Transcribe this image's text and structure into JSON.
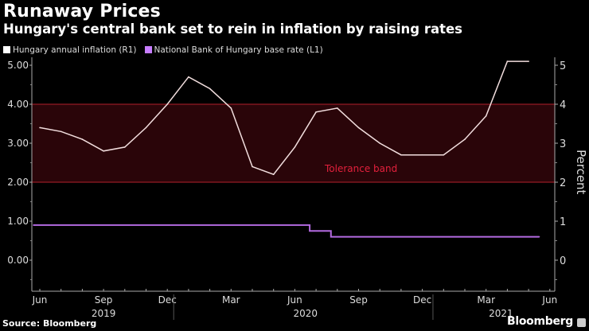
{
  "chart_data": {
    "type": "line",
    "title": "Runaway Prices",
    "subtitle": "Hungary's central bank set to rein in inflation by raising rates",
    "source": "Source: Bloomberg",
    "brand": "Bloomberg",
    "ylabel_right": "Percent",
    "ylim": [
      -0.8,
      5.2
    ],
    "left_ticks": [
      "5.00",
      "4.00",
      "3.00",
      "2.00",
      "1.00",
      "0.00"
    ],
    "left_tick_values": [
      5,
      4,
      3,
      2,
      1,
      0
    ],
    "right_ticks": [
      "5",
      "4",
      "3",
      "2",
      "1",
      "0"
    ],
    "right_tick_values": [
      5,
      4,
      3,
      2,
      1,
      0
    ],
    "x_month_labels": [
      {
        "label": "Jun",
        "m": 0
      },
      {
        "label": "Sep",
        "m": 3
      },
      {
        "label": "Dec",
        "m": 6
      },
      {
        "label": "Mar",
        "m": 9
      },
      {
        "label": "Jun",
        "m": 12
      },
      {
        "label": "Sep",
        "m": 15
      },
      {
        "label": "Dec",
        "m": 18
      },
      {
        "label": "Mar",
        "m": 21
      },
      {
        "label": "Jun",
        "m": 24
      }
    ],
    "x_year_labels": [
      {
        "label": "2019",
        "m": 3
      },
      {
        "label": "2020",
        "m": 12.5
      },
      {
        "label": "2021",
        "m": 21.7
      }
    ],
    "year_dividers_m": [
      6.3,
      18.5
    ],
    "x_start": "Jun 2019",
    "band": {
      "label": "Tolerance band",
      "low": 2,
      "high": 4,
      "fill": "#2a0509",
      "line": "#b3202b",
      "text_color": "#e3203c"
    },
    "series": [
      {
        "name": "Hungary annual inflation (R1)",
        "color": "#f2dede",
        "legend_color": "#ffffff",
        "axis": "right",
        "months": [
          "Jun 2019",
          "Jul 2019",
          "Aug 2019",
          "Sep 2019",
          "Oct 2019",
          "Nov 2019",
          "Dec 2019",
          "Jan 2020",
          "Feb 2020",
          "Mar 2020",
          "Apr 2020",
          "May 2020",
          "Jun 2020",
          "Jul 2020",
          "Aug 2020",
          "Sep 2020",
          "Oct 2020",
          "Nov 2020",
          "Dec 2020",
          "Jan 2021",
          "Feb 2021",
          "Mar 2021",
          "Apr 2021",
          "May 2021"
        ],
        "m": [
          0,
          1,
          2,
          3,
          4,
          5,
          6,
          7,
          8,
          9,
          10,
          11,
          12,
          13,
          14,
          15,
          16,
          17,
          18,
          19,
          20,
          21,
          22,
          23
        ],
        "values": [
          3.4,
          3.3,
          3.1,
          2.8,
          2.9,
          3.4,
          4.0,
          4.7,
          4.4,
          3.9,
          2.4,
          2.2,
          2.9,
          3.8,
          3.9,
          3.4,
          3.0,
          2.7,
          2.7,
          2.7,
          3.1,
          3.7,
          5.1,
          5.1
        ]
      },
      {
        "name": "National Bank of Hungary base rate (L1)",
        "color": "#b36ae0",
        "legend_color": "#c77dff",
        "axis": "left",
        "step": true,
        "m": [
          -0.3,
          12.7,
          13.7,
          23.5
        ],
        "values": [
          0.9,
          0.75,
          0.6,
          0.6
        ]
      }
    ]
  }
}
